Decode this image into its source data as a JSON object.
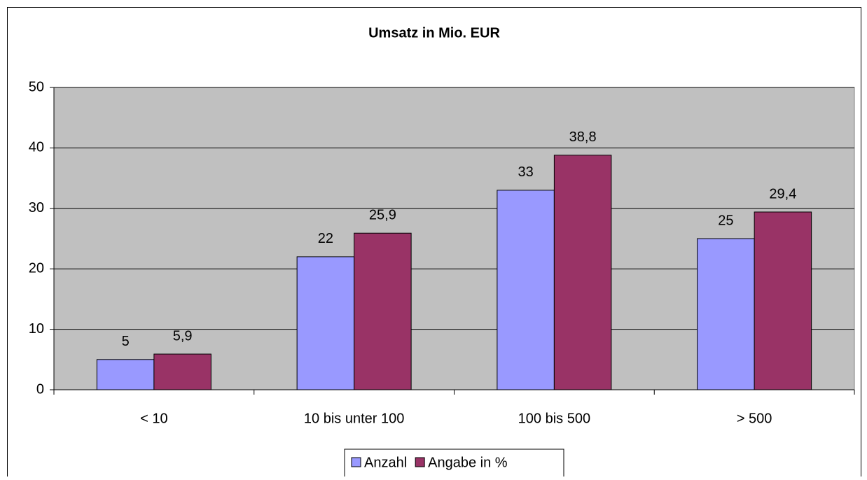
{
  "chart_data": {
    "type": "bar",
    "title": "Umsatz in Mio. EUR",
    "categories": [
      "< 10",
      "10 bis unter 100",
      "100 bis 500",
      "> 500"
    ],
    "series": [
      {
        "name": "Anzahl",
        "color": "#9999ff",
        "values": [
          5,
          22,
          33,
          25
        ]
      },
      {
        "name": "Angabe in %",
        "color": "#993366",
        "values": [
          5.9,
          25.9,
          38.8,
          29.4
        ],
        "value_labels": [
          "5,9",
          "25,9",
          "38,8",
          "29,4"
        ]
      }
    ],
    "ylim": [
      0,
      50
    ],
    "yticks": [
      0,
      10,
      20,
      30,
      40,
      50
    ],
    "grid": true,
    "legend": "bottom"
  }
}
